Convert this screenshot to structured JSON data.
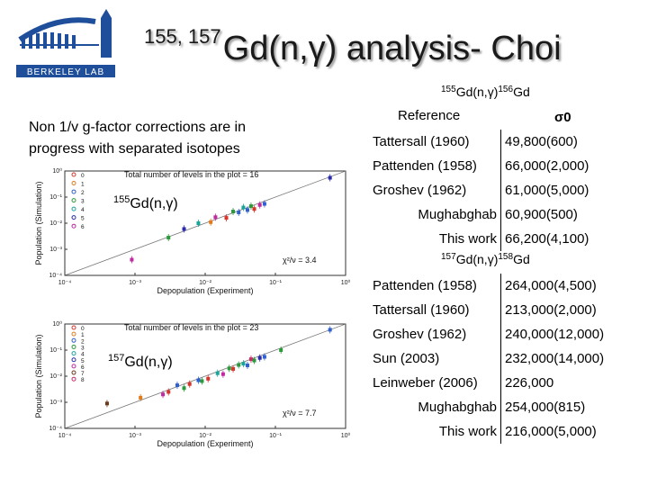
{
  "logo": {
    "name": "Berkeley Lab",
    "lettering": "BERKELEY LAB"
  },
  "title": {
    "sup": "155, 157",
    "main": "Gd(n,γ) analysis- Choi"
  },
  "note": "Non 1/v g-factor corrections are in progress with separated isotopes",
  "table155": {
    "title_sup1": "155",
    "title_mid": "Gd(n,γ)",
    "title_sup2": "156",
    "title_end": "Gd",
    "col_ref": "Reference",
    "col_sigma": "σ0",
    "rows": [
      {
        "ref": "Tattersall (1960)",
        "value": "49,800(600)"
      },
      {
        "ref": "Pattenden (1958)",
        "value": "66,000(2,000)"
      },
      {
        "ref": "Groshev (1962)",
        "value": "61,000(5,000)"
      },
      {
        "ref": "Mughabghab",
        "value": "60,900(500)"
      },
      {
        "ref": "This work",
        "value": "66,200(4,100)"
      }
    ]
  },
  "table157": {
    "title_sup1": "157",
    "title_mid": "Gd(n,γ)",
    "title_sup2": "158",
    "title_end": "Gd",
    "rows": [
      {
        "ref": "Pattenden (1958)",
        "value": "264,000(4,500)"
      },
      {
        "ref": "Tattersall (1960)",
        "value": "213,000(2,000)"
      },
      {
        "ref": "Groshev (1962)",
        "value": "240,000(12,000)"
      },
      {
        "ref": "Sun (2003)",
        "value": "232,000(14,000)"
      },
      {
        "ref": "Leinweber (2006)",
        "value": "226,000"
      },
      {
        "ref": "Mughabghab",
        "value": "254,000(815)"
      },
      {
        "ref": "This work",
        "value": "216,000(5,000)"
      }
    ]
  },
  "chart_data": [
    {
      "type": "scatter",
      "title": "Total number of levels in the plot = 16",
      "label_sup": "155",
      "label": "Gd(n,γ)",
      "xlabel": "Depopulation (Experiment)",
      "ylabel": "Population (Simulation)",
      "log_x": true,
      "log_y": true,
      "xlim_exp": [
        -4,
        0
      ],
      "ylim_exp": [
        -4,
        0
      ],
      "x_ticks": [
        "10⁻⁴",
        "10⁻³",
        "10⁻²",
        "10⁻¹",
        "10⁰"
      ],
      "y_ticks": [
        "10⁰",
        "10⁻¹",
        "10⁻²",
        "10⁻³",
        "10⁻⁴"
      ],
      "chi2": "χ²/ν = 3.4",
      "legend": [
        "0",
        "1",
        "2",
        "3",
        "4",
        "5",
        "6"
      ],
      "legend_colors": [
        "#d8342c",
        "#e07a1c",
        "#2f5fd0",
        "#2a9a3a",
        "#1aa59a",
        "#2a2ab0",
        "#c02aa0"
      ],
      "points": [
        {
          "x": 0.005,
          "y": 0.006,
          "s": 5
        },
        {
          "x": 0.012,
          "y": 0.011,
          "s": 1
        },
        {
          "x": 0.014,
          "y": 0.017,
          "s": 6
        },
        {
          "x": 0.02,
          "y": 0.016,
          "s": 0
        },
        {
          "x": 0.025,
          "y": 0.028,
          "s": 3
        },
        {
          "x": 0.03,
          "y": 0.026,
          "s": 2
        },
        {
          "x": 0.035,
          "y": 0.04,
          "s": 4
        },
        {
          "x": 0.04,
          "y": 0.032,
          "s": 2
        },
        {
          "x": 0.045,
          "y": 0.045,
          "s": 3
        },
        {
          "x": 0.05,
          "y": 0.035,
          "s": 0
        },
        {
          "x": 0.06,
          "y": 0.05,
          "s": 6
        },
        {
          "x": 0.07,
          "y": 0.055,
          "s": 2
        },
        {
          "x": 0.0009,
          "y": 0.0004,
          "s": 6
        },
        {
          "x": 0.003,
          "y": 0.0028,
          "s": 3
        },
        {
          "x": 0.008,
          "y": 0.01,
          "s": 4
        },
        {
          "x": 0.6,
          "y": 0.55,
          "s": 5
        }
      ]
    },
    {
      "type": "scatter",
      "title": "Total number of levels in the plot = 23",
      "label_sup": "157",
      "label": "Gd(n,γ)",
      "xlabel": "Depopulation (Experiment)",
      "ylabel": "Population (Simulation)",
      "log_x": true,
      "log_y": true,
      "xlim_exp": [
        -4,
        0
      ],
      "ylim_exp": [
        -4,
        0
      ],
      "x_ticks": [
        "10⁻⁴",
        "10⁻³",
        "10⁻²",
        "10⁻¹",
        "10⁰"
      ],
      "y_ticks": [
        "10⁰",
        "10⁻¹",
        "10⁻²",
        "10⁻³",
        "10⁻⁴"
      ],
      "chi2": "χ²/ν = 7.7",
      "legend": [
        "0",
        "1",
        "2",
        "3",
        "4",
        "5",
        "6",
        "7",
        "8"
      ],
      "legend_colors": [
        "#d8342c",
        "#e07a1c",
        "#2f5fd0",
        "#2a9a3a",
        "#1aa59a",
        "#2a2ab0",
        "#c02aa0",
        "#6a3a1a",
        "#d02a6a"
      ],
      "points": [
        {
          "x": 0.003,
          "y": 0.0025,
          "s": 0
        },
        {
          "x": 0.004,
          "y": 0.0045,
          "s": 2
        },
        {
          "x": 0.005,
          "y": 0.0035,
          "s": 3
        },
        {
          "x": 0.006,
          "y": 0.005,
          "s": 0
        },
        {
          "x": 0.008,
          "y": 0.007,
          "s": 2
        },
        {
          "x": 0.009,
          "y": 0.0065,
          "s": 3
        },
        {
          "x": 0.011,
          "y": 0.008,
          "s": 0
        },
        {
          "x": 0.015,
          "y": 0.013,
          "s": 4
        },
        {
          "x": 0.018,
          "y": 0.012,
          "s": 6
        },
        {
          "x": 0.022,
          "y": 0.02,
          "s": 3
        },
        {
          "x": 0.025,
          "y": 0.019,
          "s": 0
        },
        {
          "x": 0.03,
          "y": 0.027,
          "s": 3
        },
        {
          "x": 0.035,
          "y": 0.03,
          "s": 4
        },
        {
          "x": 0.04,
          "y": 0.026,
          "s": 2
        },
        {
          "x": 0.045,
          "y": 0.045,
          "s": 8
        },
        {
          "x": 0.05,
          "y": 0.04,
          "s": 3
        },
        {
          "x": 0.06,
          "y": 0.05,
          "s": 5
        },
        {
          "x": 0.07,
          "y": 0.055,
          "s": 2
        },
        {
          "x": 0.6,
          "y": 0.6,
          "s": 2
        },
        {
          "x": 0.0004,
          "y": 0.0009,
          "s": 7
        },
        {
          "x": 0.0012,
          "y": 0.0015,
          "s": 1
        },
        {
          "x": 0.0025,
          "y": 0.002,
          "s": 6
        },
        {
          "x": 0.12,
          "y": 0.1,
          "s": 3
        }
      ]
    }
  ]
}
